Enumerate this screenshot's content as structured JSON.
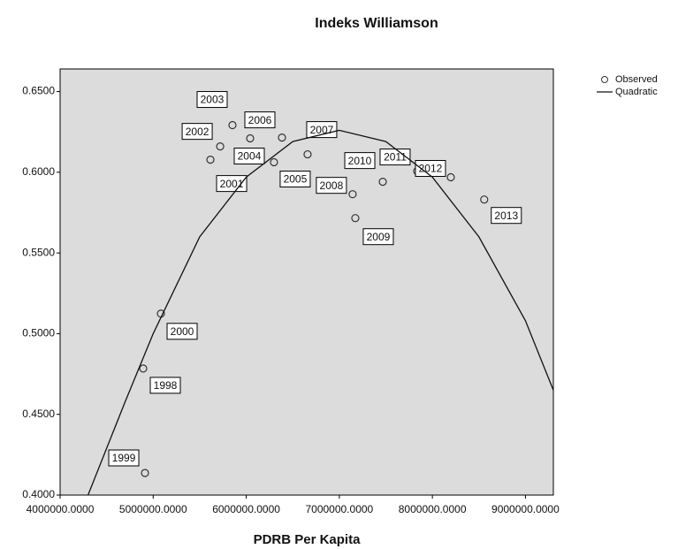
{
  "chart_data": {
    "type": "scatter",
    "title": "Indeks Williamson",
    "x_label": "PDRB Per Kapita",
    "xlim": [
      4000000,
      9300000
    ],
    "ylim": [
      0.4,
      0.664
    ],
    "xticks": [
      {
        "value": 4000000,
        "label": "4000000.0000"
      },
      {
        "value": 5000000,
        "label": "5000000.0000"
      },
      {
        "value": 6000000,
        "label": "6000000.0000"
      },
      {
        "value": 7000000,
        "label": "7000000.0000"
      },
      {
        "value": 8000000,
        "label": "8000000.0000"
      },
      {
        "value": 9000000,
        "label": "9000000.0000"
      }
    ],
    "yticks": [
      {
        "value": 0.4,
        "label": "0.4000"
      },
      {
        "value": 0.45,
        "label": "0.4500"
      },
      {
        "value": 0.5,
        "label": "0.5000"
      },
      {
        "value": 0.55,
        "label": "0.5500"
      },
      {
        "value": 0.6,
        "label": "0.6000"
      },
      {
        "value": 0.65,
        "label": "0.6500"
      }
    ],
    "background": "#dcdcdc",
    "series": [
      {
        "name": "Observed",
        "kind": "points",
        "color": "#333333",
        "point_labels": [
          "1999",
          "1998",
          "2000",
          "2001",
          "2002",
          "2003",
          "2004",
          "2006",
          "2005",
          "2007",
          "2008",
          "2009",
          "2010",
          "2011",
          "2012",
          "2013"
        ],
        "x": [
          4912000,
          4893000,
          5083000,
          5615000,
          5720000,
          5852000,
          6042000,
          6384000,
          6298000,
          6659000,
          7143000,
          7172000,
          7467000,
          7837000,
          8198000,
          8557000
        ],
        "values": [
          0.4137,
          0.4784,
          0.5124,
          0.6078,
          0.616,
          0.6292,
          0.621,
          0.6215,
          0.6062,
          0.6111,
          0.5864,
          0.5716,
          0.5941,
          0.6007,
          0.5969,
          0.5831
        ]
      },
      {
        "name": "Quadratic",
        "kind": "line",
        "color": "#111111",
        "x": [
          4300000,
          4700000,
          5000000,
          5500000,
          6000000,
          6500000,
          7000000,
          7500000,
          8000000,
          8500000,
          9000000,
          9300000
        ],
        "values": [
          0.4,
          0.458,
          0.5,
          0.56,
          0.597,
          0.619,
          0.626,
          0.619,
          0.597,
          0.56,
          0.508,
          0.465
        ]
      }
    ]
  }
}
